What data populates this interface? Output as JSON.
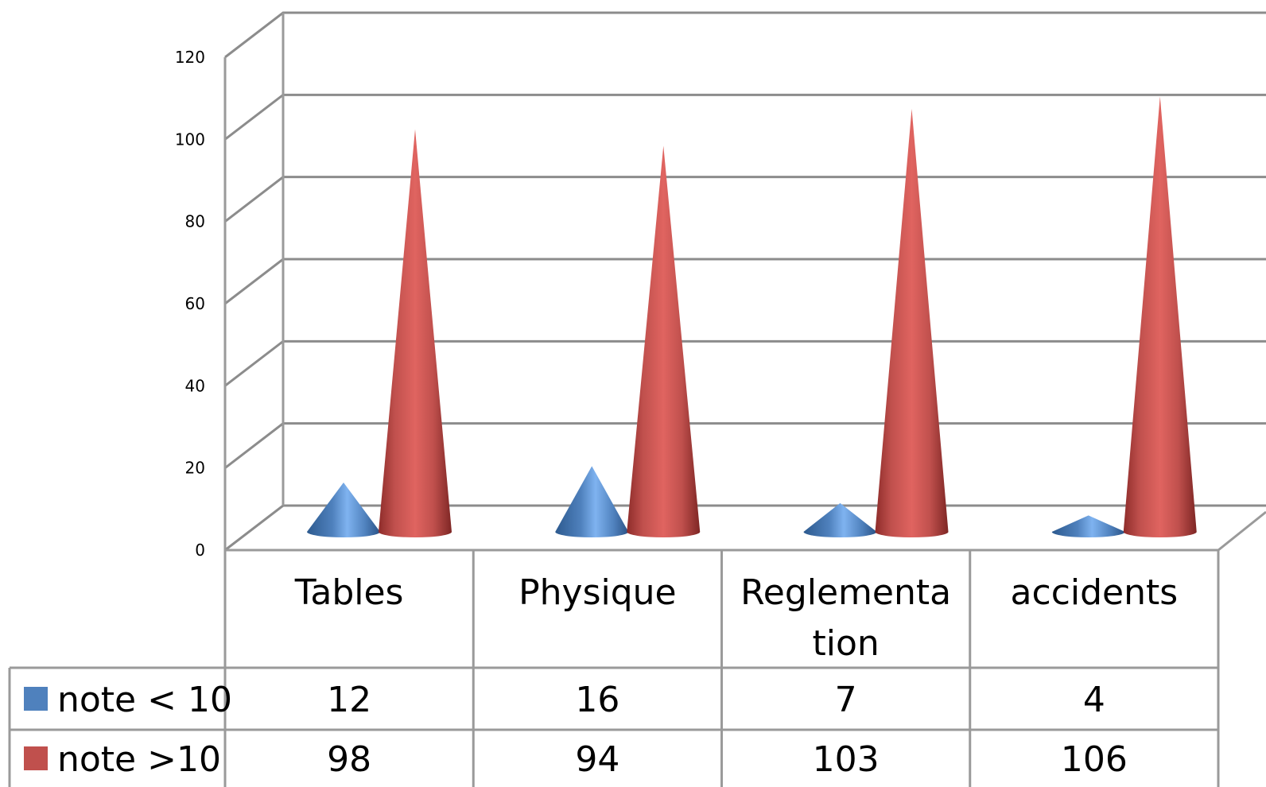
{
  "chart_data": {
    "type": "bar",
    "style": "3d-cone",
    "categories": [
      "Tables",
      "Physique",
      "Reglementa tion",
      "accidents"
    ],
    "category_lines": [
      [
        "Tables"
      ],
      [
        "Physique"
      ],
      [
        "Reglementa",
        "tion"
      ],
      [
        "accidents"
      ]
    ],
    "series": [
      {
        "name": "note < 10",
        "values": [
          12,
          16,
          7,
          4
        ],
        "color": "#4f81bd"
      },
      {
        "name": "note >10",
        "values": [
          98,
          94,
          103,
          106
        ],
        "color": "#c0504d"
      }
    ],
    "ylim": [
      0,
      120
    ],
    "y_ticks": [
      "0",
      "20",
      "40",
      "60",
      "80",
      "100",
      "120"
    ],
    "grid": true,
    "legend": "data-table",
    "data_table": true
  }
}
